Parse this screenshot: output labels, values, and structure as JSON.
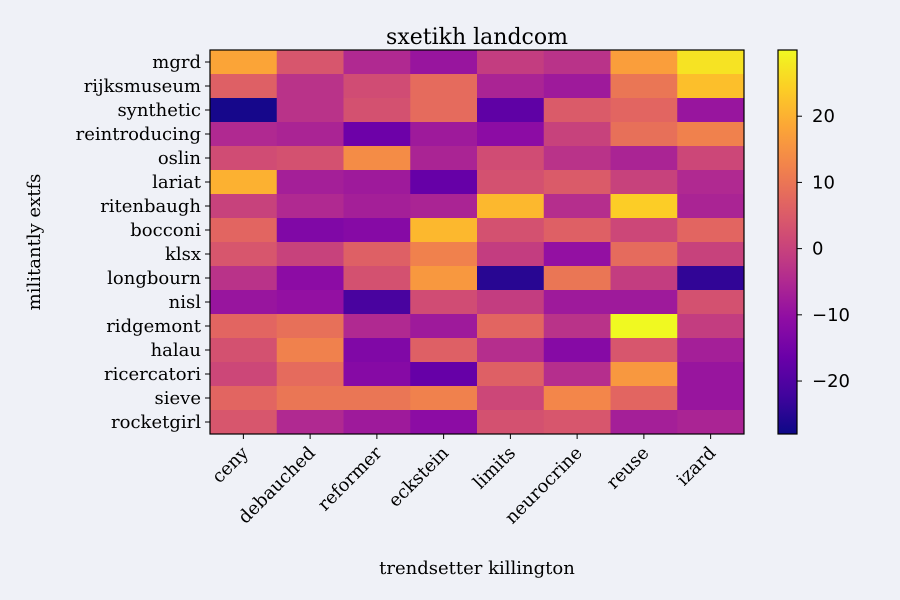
{
  "chart_data": {
    "type": "heatmap",
    "title": "sxetikh landcom",
    "xlabel": "trendsetter killington",
    "ylabel": "militantly extfs",
    "x_categories": [
      "ceny",
      "debauched",
      "reformer",
      "eckstein",
      "limits",
      "neurocrine",
      "reuse",
      "izard"
    ],
    "y_categories": [
      "mgrd",
      "rijksmuseum",
      "synthetic",
      "reintroducing",
      "oslin",
      "lariat",
      "ritenbaugh",
      "bocconi",
      "klsx",
      "longbourn",
      "nisl",
      "ridgemont",
      "halau",
      "ricercatori",
      "sieve",
      "rocketgirl"
    ],
    "values": [
      [
        18,
        4,
        -5,
        -9,
        -1,
        -3,
        17,
        27
      ],
      [
        6,
        -3,
        2,
        8,
        -6,
        -8,
        10,
        22
      ],
      [
        -27,
        -3,
        3,
        8,
        -18,
        5,
        7,
        -9
      ],
      [
        -5,
        -6,
        -16,
        -8,
        -11,
        0,
        9,
        12
      ],
      [
        2,
        3,
        14,
        -6,
        2,
        -3,
        -6,
        1
      ],
      [
        20,
        -7,
        -8,
        -17,
        3,
        5,
        0,
        -5
      ],
      [
        0,
        -5,
        -7,
        -6,
        21,
        -4,
        24,
        -6
      ],
      [
        7,
        -13,
        -12,
        21,
        3,
        6,
        1,
        7
      ],
      [
        4,
        0,
        6,
        12,
        -1,
        -10,
        8,
        0
      ],
      [
        -3,
        -11,
        3,
        16,
        -25,
        10,
        -1,
        -24
      ],
      [
        -9,
        -10,
        -21,
        2,
        -1,
        -8,
        -8,
        3
      ],
      [
        7,
        9,
        -5,
        -8,
        7,
        -3,
        30,
        -1
      ],
      [
        3,
        12,
        -13,
        6,
        -4,
        -12,
        4,
        -7
      ],
      [
        1,
        8,
        -12,
        -17,
        6,
        -4,
        16,
        -9
      ],
      [
        7,
        10,
        10,
        12,
        1,
        13,
        7,
        -9
      ],
      [
        4,
        -5,
        -8,
        -11,
        3,
        4,
        -7,
        -6
      ]
    ],
    "colormap": "plasma",
    "vmin": -28,
    "vmax": 30,
    "colorbar_ticks": [
      20,
      10,
      0,
      -10,
      -20
    ],
    "colorbar_tick_labels": [
      "20",
      "10",
      "0",
      "−10",
      "−20"
    ],
    "grid": false,
    "colorbar_position": "right"
  }
}
